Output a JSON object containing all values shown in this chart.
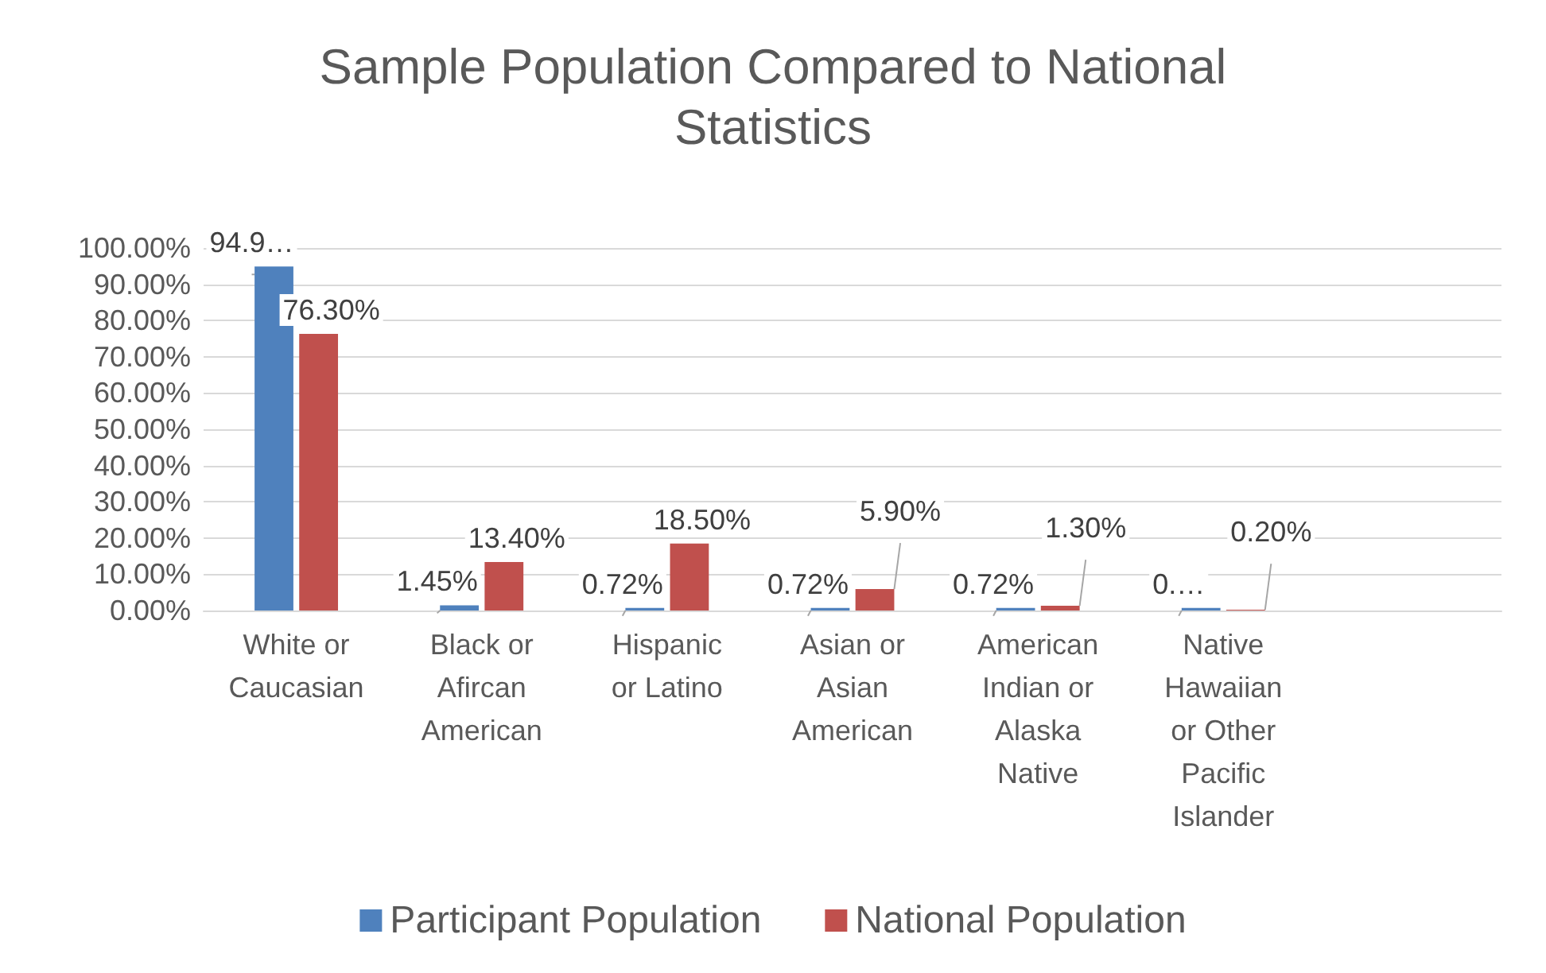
{
  "chart_data": {
    "type": "bar",
    "title": "Sample Population Compared to National Statistics",
    "categories": [
      "White or Caucasian",
      "Black or Afircan American",
      "Hispanic or Latino",
      "Asian or Asian American",
      "American Indian or Alaska Native",
      "Native Hawaiian or Other Pacific Islander",
      null
    ],
    "series": [
      {
        "name": "Participant Population",
        "color": "#4f81bd",
        "values": [
          94.9,
          1.45,
          0.72,
          0.72,
          0.72,
          0.72,
          null
        ],
        "value_labels": [
          "94.9…",
          "1.45%",
          "0.72%",
          "0.72%",
          "0.72%",
          "0.…",
          null
        ]
      },
      {
        "name": "National Population",
        "color": "#c0504d",
        "values": [
          76.3,
          13.4,
          18.5,
          5.9,
          1.3,
          0.2,
          null
        ],
        "value_labels": [
          "76.30%",
          "13.40%",
          "18.50%",
          "5.90%",
          "1.30%",
          "0.20%",
          null
        ]
      }
    ],
    "ylim": [
      0,
      100
    ],
    "yticks": [
      {
        "value": 0,
        "label": "0.00%"
      },
      {
        "value": 10,
        "label": "10.00%"
      },
      {
        "value": 20,
        "label": "20.00%"
      },
      {
        "value": 30,
        "label": "30.00%"
      },
      {
        "value": 40,
        "label": "40.00%"
      },
      {
        "value": 50,
        "label": "50.00%"
      },
      {
        "value": 60,
        "label": "60.00%"
      },
      {
        "value": 70,
        "label": "70.00%"
      },
      {
        "value": 80,
        "label": "80.00%"
      },
      {
        "value": 90,
        "label": "90.00%"
      },
      {
        "value": 100,
        "label": "100.00%"
      }
    ],
    "grid": "y",
    "legend": "bottom"
  }
}
